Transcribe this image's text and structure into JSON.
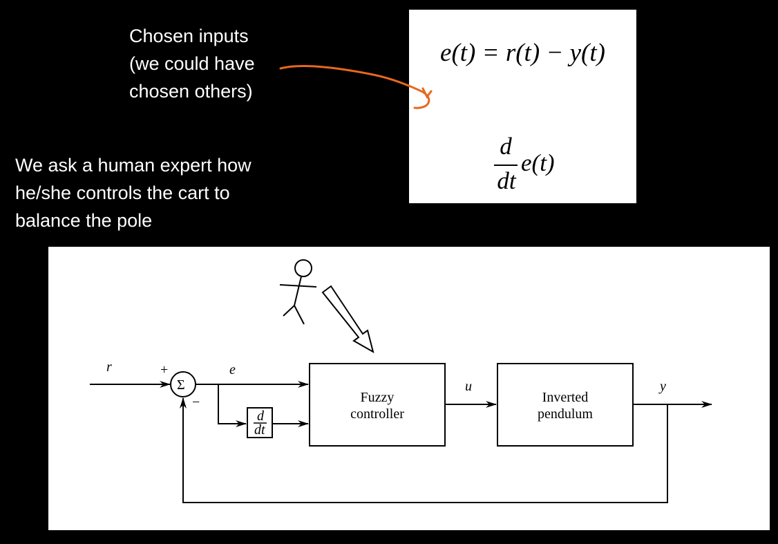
{
  "annotation": {
    "lines": [
      "Chosen inputs",
      "(we could have",
      "chosen others)"
    ],
    "arrow_color": "#e8681e"
  },
  "expert": {
    "lines": [
      "We ask a human expert how",
      "he/she controls the cart to",
      "balance the pole"
    ]
  },
  "formulas": {
    "error_equation": "e(t) = r(t) − y(t)",
    "derivative_numerator": "d",
    "derivative_denominator": "dt",
    "derivative_expression": "e(t)"
  },
  "block_diagram": {
    "signals": {
      "reference": "r",
      "error": "e",
      "control": "u",
      "output": "y"
    },
    "summing_junction": {
      "symbol": "Σ",
      "plus_sign": "+",
      "minus_sign": "−"
    },
    "derivative_block": {
      "numerator": "d",
      "denominator": "dt"
    },
    "blocks": {
      "controller": [
        "Fuzzy",
        "controller"
      ],
      "plant": [
        "Inverted",
        "pendulum"
      ]
    }
  }
}
